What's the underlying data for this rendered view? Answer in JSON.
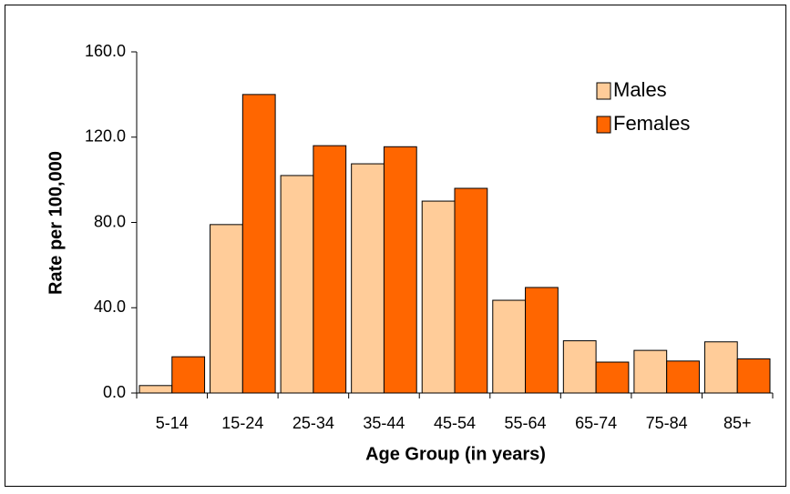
{
  "chart_data": {
    "type": "bar",
    "xlabel": "Age Group (in years)",
    "ylabel": "Rate per 100,000",
    "categories": [
      "5-14",
      "15-24",
      "25-34",
      "35-44",
      "45-54",
      "55-64",
      "65-74",
      "75-84",
      "85+"
    ],
    "series": [
      {
        "name": "Males",
        "color": "#FFCC99",
        "values": [
          3.5,
          79,
          102,
          107.5,
          90,
          43.5,
          24.5,
          20,
          24
        ]
      },
      {
        "name": "Females",
        "color": "#FF6600",
        "values": [
          17,
          140,
          116,
          115.5,
          96,
          49.5,
          14.5,
          15,
          16
        ]
      }
    ],
    "ylim": [
      0,
      160
    ],
    "yticks": [
      {
        "value": 0,
        "label": "0.0"
      },
      {
        "value": 40,
        "label": "40.0"
      },
      {
        "value": 80,
        "label": "80.0"
      },
      {
        "value": 120,
        "label": "120.0"
      },
      {
        "value": 160,
        "label": "160.0"
      }
    ],
    "grid": false,
    "legend": "upper right"
  }
}
